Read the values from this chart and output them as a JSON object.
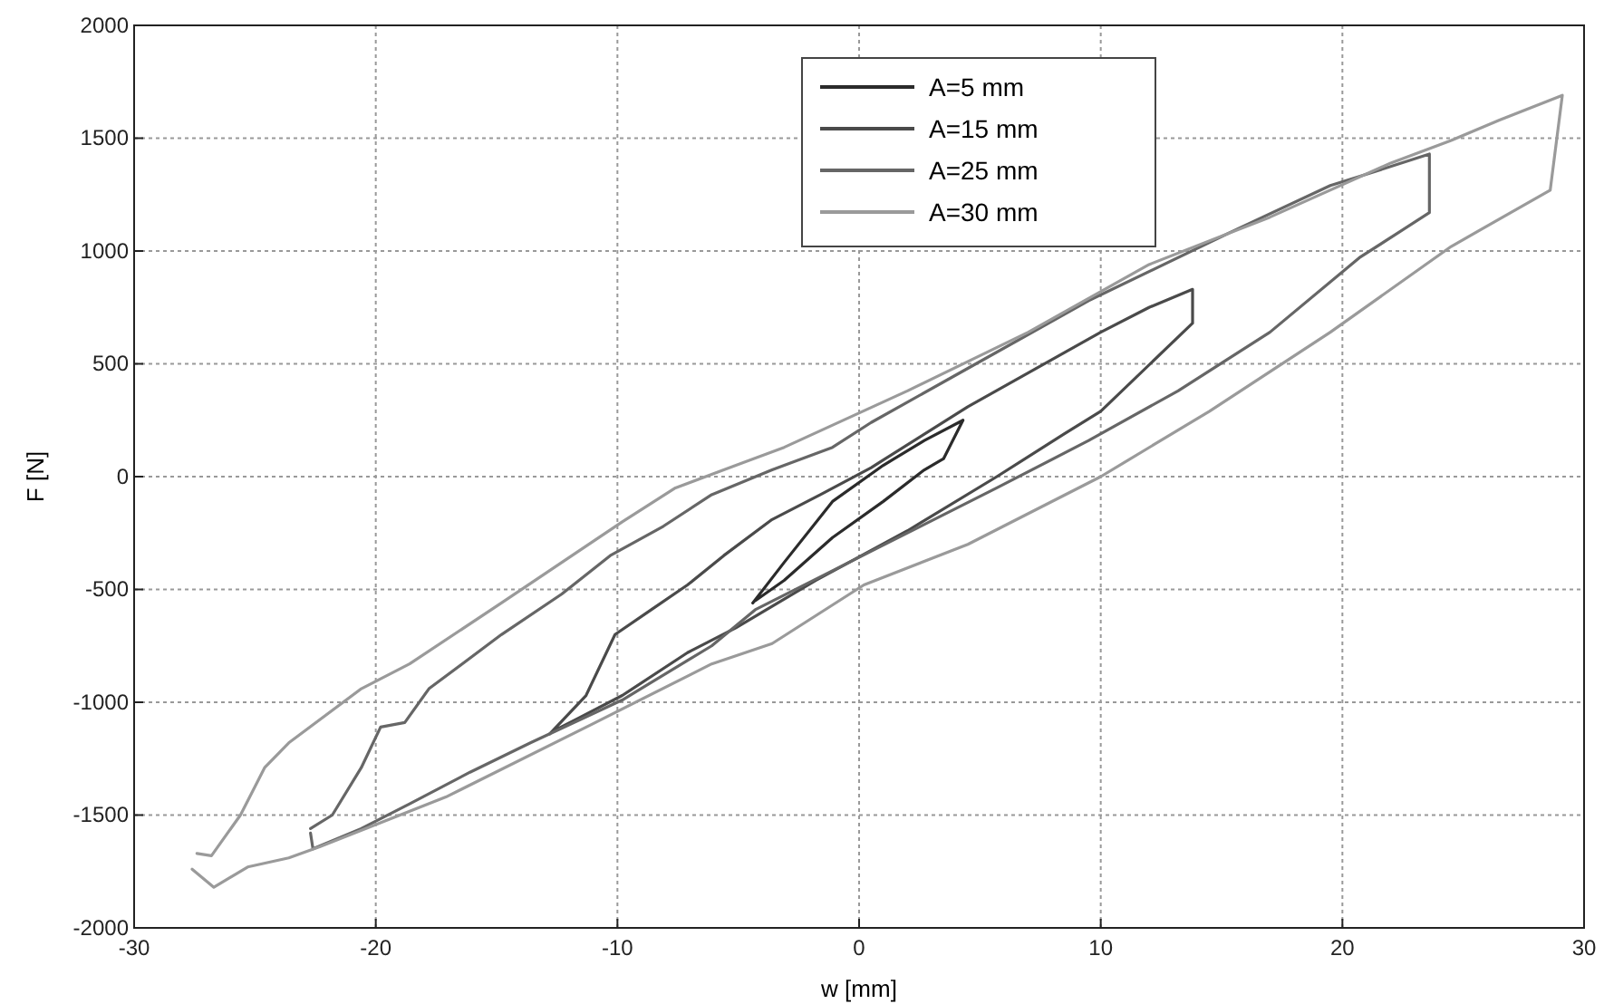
{
  "chart_data": {
    "type": "line",
    "xlabel": "w [mm]",
    "ylabel": "F [N]",
    "xlim": [
      -30,
      30
    ],
    "ylim": [
      -2000,
      2000
    ],
    "xticks": [
      -30,
      -20,
      -10,
      0,
      10,
      20,
      30
    ],
    "yticks": [
      -2000,
      -1500,
      -1000,
      -500,
      0,
      500,
      1000,
      1500,
      2000
    ],
    "grid": true,
    "legend": "top",
    "line_style": "solid",
    "marker": "none",
    "series": [
      {
        "name": "A=5 mm",
        "color": "#2b2b2b",
        "x": [
          -4.4,
          -3.1,
          -1.1,
          1,
          2.7,
          4.3,
          3.5,
          2.7,
          1,
          -1.1,
          -3.1,
          -4.3
        ],
        "values": [
          -560,
          -380,
          -110,
          50,
          160,
          250,
          80,
          30,
          -110,
          -270,
          -460,
          -550
        ]
      },
      {
        "name": "A=15 mm",
        "color": "#4a4a4a",
        "x": [
          -12.8,
          -11.3,
          -10.1,
          -8.6,
          -7.1,
          -5.6,
          -3.6,
          -1.6,
          0.5,
          4.5,
          10,
          12,
          13.8,
          13.8,
          10,
          8.5,
          5.7,
          2,
          -1.8,
          -5.1,
          -7.1,
          -9.8,
          -11.6,
          -12.7
        ],
        "values": [
          -1140,
          -970,
          -700,
          -590,
          -480,
          -350,
          -190,
          -80,
          40,
          310,
          640,
          750,
          830,
          680,
          290,
          190,
          0,
          -240,
          -460,
          -670,
          -780,
          -970,
          -1070,
          -1130
        ]
      },
      {
        "name": "A=25 mm",
        "color": "#666666",
        "x": [
          -22.7,
          -21.8,
          -20.6,
          -19.8,
          -18.8,
          -17.8,
          -14.8,
          -12.3,
          -10.3,
          -8.1,
          -6.1,
          -3.6,
          -1.1,
          0.5,
          4.5,
          9.5,
          15.7,
          19.5,
          21,
          23.6,
          23.6,
          20.7,
          17,
          13.2,
          9.5,
          5.7,
          0.7,
          -4.3,
          -6.1,
          -9.8,
          -13.6,
          -16.1,
          -18.6,
          -20.6,
          -22.6,
          -22.7
        ],
        "values": [
          -1560,
          -1500,
          -1290,
          -1110,
          -1090,
          -940,
          -700,
          -520,
          -350,
          -220,
          -80,
          30,
          130,
          240,
          480,
          780,
          1100,
          1290,
          1340,
          1430,
          1170,
          970,
          640,
          380,
          160,
          -50,
          -320,
          -590,
          -750,
          -990,
          -1180,
          -1310,
          -1450,
          -1560,
          -1650,
          -1580
        ]
      },
      {
        "name": "A=30 mm",
        "color": "#9a9a9a",
        "x": [
          -27.4,
          -26.8,
          -25.6,
          -24.6,
          -23.6,
          -20.6,
          -18.6,
          -14.8,
          -12.3,
          -9.8,
          -7.6,
          -5.6,
          -3.1,
          2,
          7,
          12,
          17,
          22,
          24.5,
          26.5,
          29.1,
          28.6,
          24.5,
          19.5,
          14.5,
          10,
          4.5,
          0.2,
          -3.6,
          -6.1,
          -11.1,
          -17.1,
          -22.3,
          -23.6,
          -25.3,
          -26.7,
          -27.6
        ],
        "values": [
          -1670,
          -1680,
          -1500,
          -1290,
          -1180,
          -940,
          -830,
          -560,
          -380,
          -200,
          -50,
          30,
          130,
          380,
          640,
          940,
          1150,
          1390,
          1490,
          1580,
          1690,
          1270,
          1020,
          640,
          290,
          0,
          -300,
          -480,
          -740,
          -830,
          -1100,
          -1420,
          -1640,
          -1690,
          -1730,
          -1820,
          -1740
        ]
      }
    ]
  }
}
